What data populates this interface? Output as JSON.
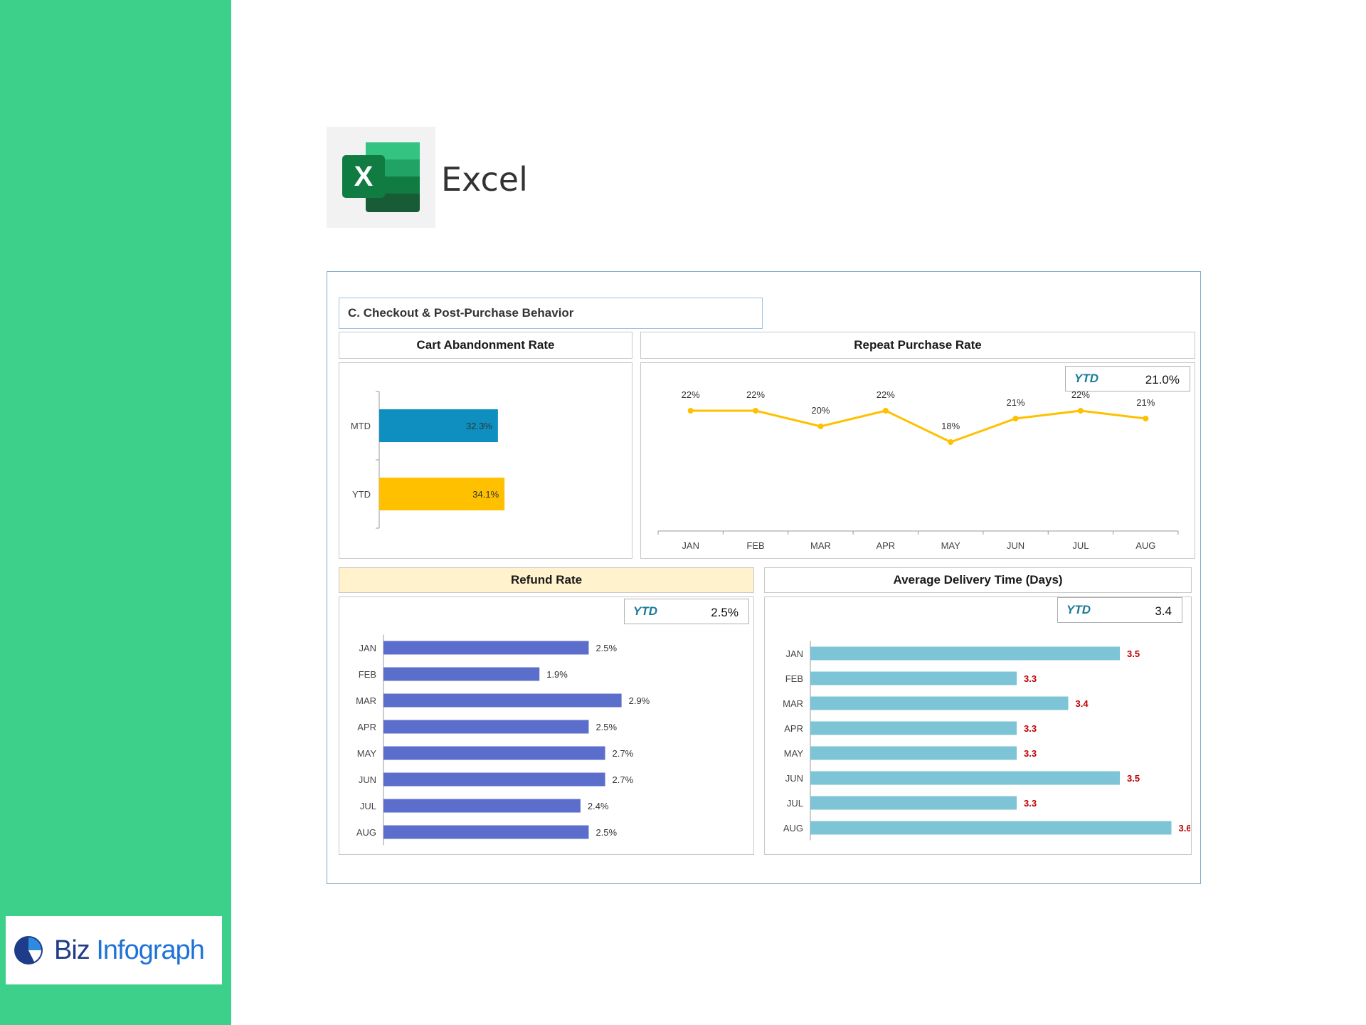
{
  "app_name": "Excel",
  "brand": {
    "part1": "Biz",
    "part2": "Infograph"
  },
  "dashboard": {
    "section_title": "C. Checkout & Post-Purchase Behavior",
    "ytd_label": "YTD",
    "repeat_ytd": "21.0%",
    "refund_ytd": "2.5%",
    "delivery_ytd": "3.4"
  },
  "colors": {
    "sidebar": "#3dd08a",
    "mtd_bar": "#0e8fc0",
    "ytd_bar": "#ffc000",
    "line": "#ffc000",
    "refund_bar": "#5b6ecc",
    "delivery_bar": "#7cc4d6",
    "delivery_label": "#c00000"
  },
  "chart_data": [
    {
      "type": "bar",
      "orientation": "horizontal",
      "title": "Cart Abandonment Rate",
      "categories": [
        "MTD",
        "YTD"
      ],
      "values": [
        32.3,
        34.1
      ],
      "labels": [
        "32.3%",
        "34.1%"
      ],
      "xlim": [
        0,
        60
      ]
    },
    {
      "type": "line",
      "title": "Repeat Purchase Rate",
      "categories": [
        "JAN",
        "FEB",
        "MAR",
        "APR",
        "MAY",
        "JUN",
        "JUL",
        "AUG"
      ],
      "values": [
        22,
        22,
        20,
        22,
        18,
        21,
        22,
        21
      ],
      "labels": [
        "22%",
        "22%",
        "20%",
        "22%",
        "18%",
        "21%",
        "22%",
        "21%"
      ],
      "ylim": [
        0,
        25
      ]
    },
    {
      "type": "bar",
      "orientation": "horizontal",
      "title": "Refund Rate",
      "categories": [
        "JAN",
        "FEB",
        "MAR",
        "APR",
        "MAY",
        "JUN",
        "JUL",
        "AUG"
      ],
      "values": [
        2.5,
        1.9,
        2.9,
        2.5,
        2.7,
        2.7,
        2.4,
        2.5
      ],
      "labels": [
        "2.5%",
        "1.9%",
        "2.9%",
        "2.5%",
        "2.7%",
        "2.7%",
        "2.4%",
        "2.5%"
      ],
      "xlim": [
        0,
        3.9
      ]
    },
    {
      "type": "bar",
      "orientation": "horizontal",
      "title": "Average Delivery Time (Days)",
      "categories": [
        "JAN",
        "FEB",
        "MAR",
        "APR",
        "MAY",
        "JUN",
        "JUL",
        "AUG"
      ],
      "values": [
        3.5,
        3.3,
        3.4,
        3.3,
        3.3,
        3.5,
        3.3,
        3.6
      ],
      "labels": [
        "3.5",
        "3.3",
        "3.4",
        "3.3",
        "3.3",
        "3.5",
        "3.3",
        "3.6"
      ],
      "xlim": [
        2.9,
        3.7
      ]
    }
  ]
}
